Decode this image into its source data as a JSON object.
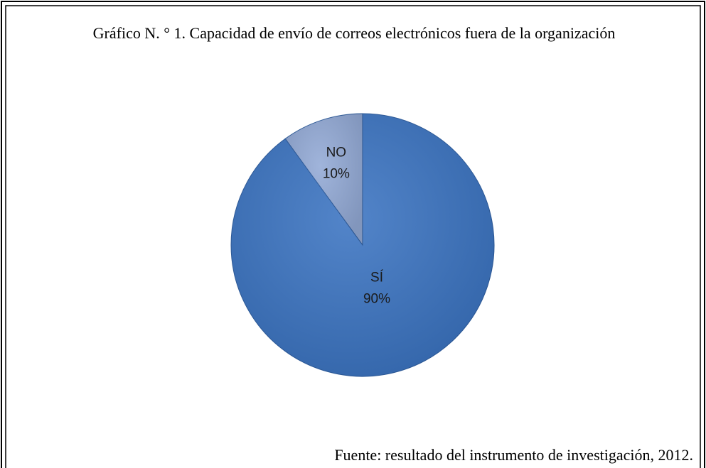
{
  "chart_data": {
    "type": "pie",
    "title": "Gráfico N. ° 1. Capacidad de envío de correos electrónicos fuera de la organización",
    "categories": [
      "SÍ",
      "NO"
    ],
    "values": [
      90,
      10
    ],
    "value_labels": [
      "90%",
      "10%"
    ],
    "colors": [
      "#3b74c2",
      "#93aad6"
    ],
    "source": "Fuente: resultado del instrumento de investigación, 2012."
  }
}
